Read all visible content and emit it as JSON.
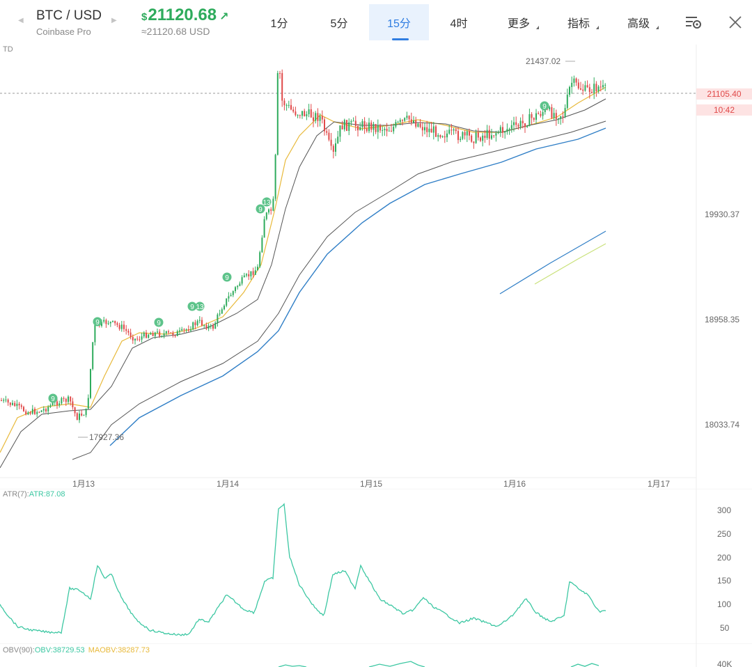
{
  "header": {
    "pair": "BTC / USD",
    "exchange": "Coinbase Pro",
    "price_symbol": "$",
    "price": "21120.68",
    "price_arrow": "↗",
    "price_equiv": "≈21120.68 USD",
    "tabs": [
      {
        "label": "1分"
      },
      {
        "label": "5分"
      },
      {
        "label": "15分",
        "active": true
      },
      {
        "label": "4时"
      },
      {
        "label": "更多"
      },
      {
        "label": "指标"
      },
      {
        "label": "高级"
      }
    ],
    "settings_icon": "chart-settings-icon",
    "close_icon": "close-icon"
  },
  "main_chart": {
    "indicator_label": "TD",
    "price_axis": [
      "19930.37",
      "18958.35",
      "18033.74"
    ],
    "current_price": "21105.40",
    "countdown": "10:42",
    "high_label": "21437.02",
    "low_label": "17927.36",
    "td_markers": [
      "9",
      "9",
      "9",
      "9",
      "13",
      "9",
      "9",
      "13",
      "9"
    ],
    "dates": [
      "1月13",
      "1月14",
      "1月15",
      "1月16",
      "1月17"
    ],
    "colors": {
      "up": "#2eab5c",
      "down": "#e04848",
      "ma_fast": "#e8b93a",
      "ma_mid": "#555555",
      "ma_slow": "#2f7ec6",
      "lime": "#c9e17a"
    }
  },
  "atr": {
    "label": "ATR(7):",
    "value_label": "ATR:87.08",
    "axis": [
      "300",
      "250",
      "200",
      "150",
      "100",
      "50"
    ],
    "color": "#3cc7a2"
  },
  "obv": {
    "label": "OBV(90):",
    "obv_value": "OBV:38729.53",
    "maobv_value": "MAOBV:38287.73",
    "axis_partial": "40K",
    "obv_color": "#3cc7a2",
    "maobv_color": "#e8b93a"
  }
}
